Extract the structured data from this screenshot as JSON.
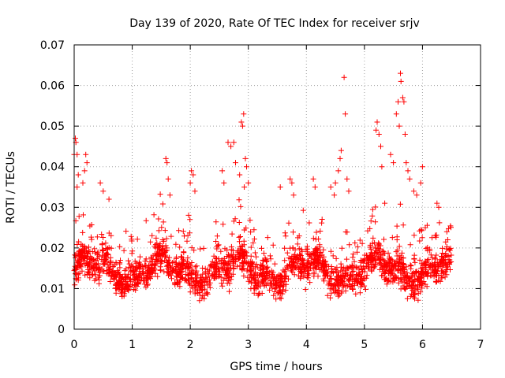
{
  "chart_data": {
    "type": "scatter",
    "title": "Day 139 of 2020, Rate Of TEC Index for receiver srjv",
    "xlabel": "GPS time / hours",
    "ylabel": "ROTI / TECUs",
    "xlim": [
      0,
      7
    ],
    "ylim": [
      0,
      0.07
    ],
    "xticks": [
      "0",
      "1",
      "2",
      "3",
      "4",
      "5",
      "6",
      "7"
    ],
    "yticks": [
      "0",
      "0.01",
      "0.02",
      "0.03",
      "0.04",
      "0.05",
      "0.06",
      "0.07"
    ],
    "grid": true,
    "marker": "+",
    "color": "#ff0000",
    "x_data_range": [
      0,
      6.5
    ],
    "baseline_band": [
      0.006,
      0.022
    ],
    "dense_point_count": 3200,
    "outlier_points": [
      [
        0.02,
        0.047
      ],
      [
        0.03,
        0.046
      ],
      [
        0.05,
        0.043
      ],
      [
        0.0,
        0.043
      ],
      [
        0.07,
        0.038
      ],
      [
        0.05,
        0.035
      ],
      [
        0.2,
        0.043
      ],
      [
        0.22,
        0.041
      ],
      [
        0.18,
        0.039
      ],
      [
        0.15,
        0.036
      ],
      [
        0.45,
        0.036
      ],
      [
        0.5,
        0.034
      ],
      [
        0.6,
        0.032
      ],
      [
        1.58,
        0.042
      ],
      [
        1.6,
        0.041
      ],
      [
        1.62,
        0.037
      ],
      [
        1.65,
        0.033
      ],
      [
        2.02,
        0.039
      ],
      [
        2.05,
        0.038
      ],
      [
        2.0,
        0.036
      ],
      [
        2.08,
        0.034
      ],
      [
        2.55,
        0.039
      ],
      [
        2.58,
        0.036
      ],
      [
        2.65,
        0.046
      ],
      [
        2.7,
        0.045
      ],
      [
        2.75,
        0.046
      ],
      [
        2.78,
        0.041
      ],
      [
        2.85,
        0.038
      ],
      [
        2.88,
        0.051
      ],
      [
        2.9,
        0.05
      ],
      [
        2.92,
        0.053
      ],
      [
        2.95,
        0.042
      ],
      [
        2.97,
        0.04
      ],
      [
        2.93,
        0.035
      ],
      [
        3.0,
        0.036
      ],
      [
        3.55,
        0.035
      ],
      [
        3.72,
        0.037
      ],
      [
        3.75,
        0.036
      ],
      [
        3.78,
        0.033
      ],
      [
        4.12,
        0.037
      ],
      [
        4.15,
        0.035
      ],
      [
        4.42,
        0.035
      ],
      [
        4.48,
        0.033
      ],
      [
        4.5,
        0.036
      ],
      [
        4.55,
        0.039
      ],
      [
        4.58,
        0.042
      ],
      [
        4.6,
        0.044
      ],
      [
        4.65,
        0.062
      ],
      [
        4.67,
        0.053
      ],
      [
        4.7,
        0.037
      ],
      [
        4.73,
        0.034
      ],
      [
        5.2,
        0.049
      ],
      [
        5.22,
        0.051
      ],
      [
        5.25,
        0.048
      ],
      [
        5.28,
        0.045
      ],
      [
        5.3,
        0.04
      ],
      [
        5.35,
        0.031
      ],
      [
        5.45,
        0.043
      ],
      [
        5.5,
        0.041
      ],
      [
        5.55,
        0.053
      ],
      [
        5.58,
        0.056
      ],
      [
        5.62,
        0.063
      ],
      [
        5.63,
        0.061
      ],
      [
        5.66,
        0.057
      ],
      [
        5.68,
        0.056
      ],
      [
        5.7,
        0.048
      ],
      [
        5.6,
        0.05
      ],
      [
        5.72,
        0.041
      ],
      [
        5.75,
        0.039
      ],
      [
        5.78,
        0.037
      ],
      [
        5.85,
        0.034
      ],
      [
        5.9,
        0.033
      ],
      [
        5.97,
        0.036
      ],
      [
        6.0,
        0.04
      ],
      [
        6.25,
        0.031
      ],
      [
        6.28,
        0.03
      ],
      [
        6.42,
        0.024
      ]
    ]
  }
}
